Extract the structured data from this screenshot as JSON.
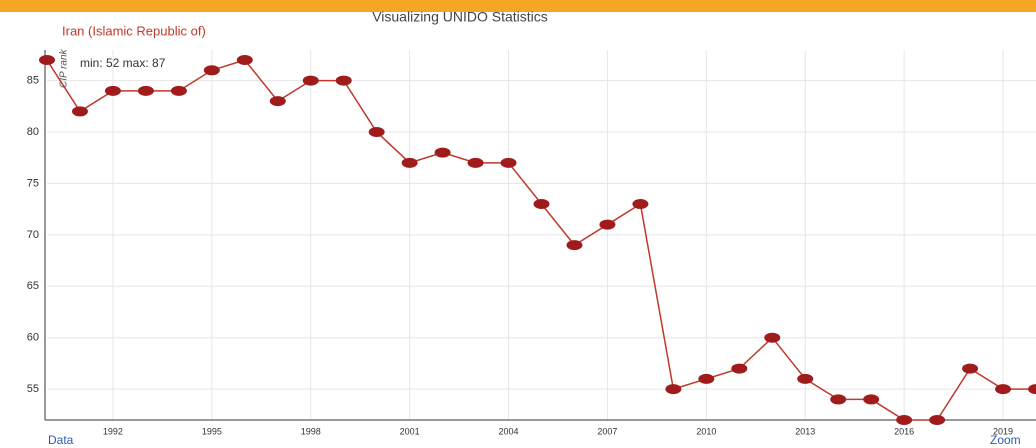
{
  "title": "Visualizing UNIDO Statistics",
  "chart_data": {
    "type": "line",
    "subtitle": "Iran (Islamic Republic of)",
    "annotation": "min: 52 max: 87",
    "y_label": "CIP rank",
    "x": [
      1990,
      1991,
      1992,
      1993,
      1994,
      1995,
      1996,
      1997,
      1998,
      1999,
      2000,
      2001,
      2002,
      2003,
      2004,
      2005,
      2006,
      2007,
      2008,
      2009,
      2010,
      2011,
      2012,
      2013,
      2014,
      2015,
      2016,
      2017,
      2018,
      2019,
      2020
    ],
    "series": [
      {
        "name": "Iran (Islamic Republic of)",
        "color": "#c0392b",
        "values": [
          87,
          82,
          84,
          84,
          84,
          86,
          87,
          83,
          85,
          85,
          80,
          77,
          78,
          77,
          77,
          73,
          69,
          71,
          73,
          55,
          56,
          57,
          60,
          56,
          54,
          54,
          52,
          52,
          57,
          55,
          55
        ]
      }
    ],
    "xlim": [
      1990,
      2020
    ],
    "xticks": [
      1992,
      1995,
      1998,
      2001,
      2004,
      2007,
      2010,
      2013,
      2016,
      2019
    ],
    "ylim": [
      52,
      87
    ],
    "yticks": [
      55,
      60,
      65,
      70,
      75,
      80,
      85
    ],
    "grid": true
  },
  "footer": {
    "left": "Data",
    "right": "Zoom"
  }
}
